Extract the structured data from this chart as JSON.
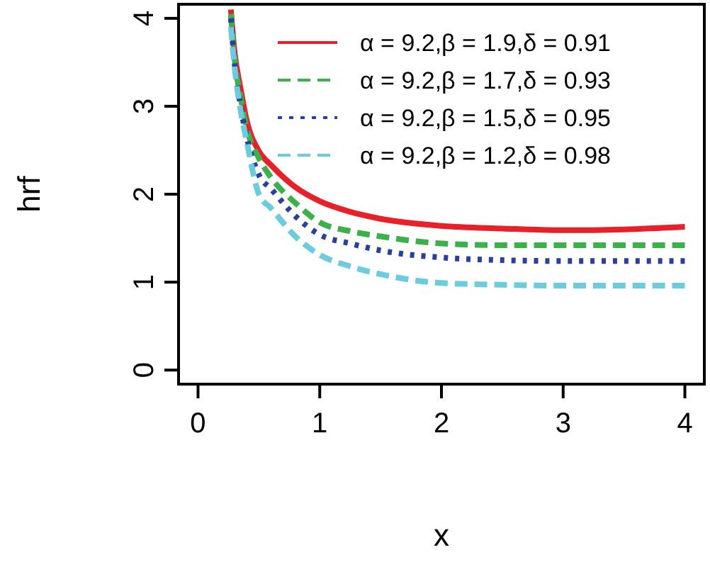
{
  "chart_data": {
    "type": "line",
    "xlabel": "x",
    "ylabel": "hrf",
    "x": [
      0.27,
      0.3,
      0.35,
      0.4,
      0.5,
      0.6,
      0.8,
      1,
      1.25,
      1.5,
      2,
      2.5,
      3,
      3.5,
      4
    ],
    "series": [
      {
        "name": "α = 9.2,β = 1.9,δ = 0.91",
        "color": "#e8202a",
        "line_style": "solid",
        "values": [
          4.1,
          3.62,
          3.2,
          2.84,
          2.49,
          2.33,
          2.08,
          1.92,
          1.8,
          1.72,
          1.64,
          1.61,
          1.59,
          1.6,
          1.63
        ]
      },
      {
        "name": "α = 9.2,β = 1.7,δ = 0.93",
        "color": "#3cb04a",
        "line_style": "dashed",
        "values": [
          4.05,
          3.55,
          3.1,
          2.75,
          2.41,
          2.19,
          1.9,
          1.68,
          1.58,
          1.52,
          1.44,
          1.42,
          1.42,
          1.42,
          1.42
        ]
      },
      {
        "name": "α = 9.2,β = 1.5,δ = 0.95",
        "color": "#2b3f9e",
        "line_style": "dotted",
        "values": [
          4.0,
          3.5,
          3.0,
          2.65,
          2.22,
          2.06,
          1.75,
          1.54,
          1.44,
          1.36,
          1.28,
          1.25,
          1.24,
          1.24,
          1.24
        ]
      },
      {
        "name": "α = 9.2,β = 1.2,δ = 0.98",
        "color": "#6ccbdc",
        "line_style": "dashed",
        "values": [
          3.9,
          3.45,
          2.95,
          2.6,
          2.0,
          1.84,
          1.52,
          1.31,
          1.18,
          1.09,
          0.99,
          0.97,
          0.96,
          0.96,
          0.96
        ]
      }
    ],
    "xlim": [
      -0.16,
      4.16
    ],
    "ylim": [
      -0.16,
      4.16
    ],
    "xticks": [
      0,
      1,
      2,
      3,
      4
    ],
    "yticks": [
      0,
      1,
      2,
      3,
      4
    ],
    "grid": false,
    "legend": "top"
  }
}
